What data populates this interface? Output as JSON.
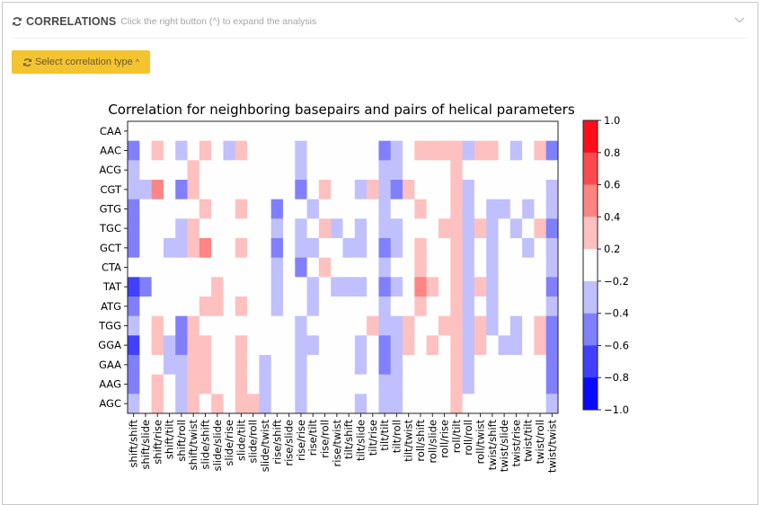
{
  "panel": {
    "title": "CORRELATIONS",
    "subtitle": "Click the right button (^) to expand the analysis",
    "title_icon": "refresh-icon",
    "collapse_icon": "chevron-down-icon"
  },
  "select_button": {
    "label": "Select correlation type",
    "icon": "refresh-icon",
    "caret": "^",
    "color": "#f4c430"
  },
  "chart_data": {
    "type": "heatmap",
    "title": "Correlation for neighboring basepairs and pairs of helical parameters",
    "xlabel": "",
    "ylabel": "",
    "grid": false,
    "legend": "colorbar-right",
    "rows": [
      "CAA",
      "AAC",
      "ACG",
      "CGT",
      "GTG",
      "TGC",
      "GCT",
      "CTA",
      "TAT",
      "ATG",
      "TGG",
      "GGA",
      "GAA",
      "AAG",
      "AGC"
    ],
    "columns": [
      "shift/shift",
      "shift/slide",
      "shift/rise",
      "shift/tilt",
      "shift/roll",
      "shift/twist",
      "slide/shift",
      "slide/slide",
      "slide/rise",
      "slide/tilt",
      "slide/roll",
      "slide/twist",
      "rise/shift",
      "rise/slide",
      "rise/rise",
      "rise/tilt",
      "rise/roll",
      "rise/twist",
      "tilt/shift",
      "tilt/slide",
      "tilt/rise",
      "tilt/tilt",
      "tilt/roll",
      "tilt/twist",
      "roll/shift",
      "roll/slide",
      "roll/rise",
      "roll/tilt",
      "roll/roll",
      "roll/twist",
      "twist/shift",
      "twist/slide",
      "twist/rise",
      "twist/tilt",
      "twist/roll",
      "twist/twist"
    ],
    "values": [
      [
        0,
        0,
        0,
        0,
        0,
        0,
        0,
        0,
        0,
        0,
        0,
        0,
        0,
        0,
        0,
        0,
        0,
        0,
        0,
        0,
        0,
        0,
        0,
        0,
        0,
        0,
        0,
        0,
        0,
        0,
        0,
        0,
        0,
        0,
        0,
        0
      ],
      [
        -0.5,
        0,
        0.3,
        0,
        -0.3,
        0,
        0.3,
        0,
        -0.3,
        0.3,
        0,
        0,
        0,
        0,
        -0.3,
        0,
        0,
        0,
        0,
        0,
        0,
        -0.5,
        -0.3,
        0,
        0.3,
        0.3,
        0.3,
        0.3,
        -0.3,
        0.3,
        0.3,
        0,
        -0.3,
        0,
        0.3,
        -0.5
      ],
      [
        -0.3,
        0,
        0,
        0,
        0,
        0.3,
        0,
        0,
        0,
        0,
        0,
        0,
        0,
        0,
        -0.3,
        0,
        0,
        0,
        0,
        0,
        0,
        -0.3,
        -0.3,
        0,
        0,
        0,
        0,
        0.3,
        0,
        0,
        0,
        0,
        0,
        0,
        0,
        0
      ],
      [
        -0.3,
        -0.3,
        0.5,
        0,
        -0.5,
        0.3,
        0,
        0,
        0,
        0,
        0,
        0,
        0,
        0,
        -0.5,
        0,
        0.3,
        0,
        0,
        -0.3,
        0.3,
        -0.3,
        -0.5,
        0.3,
        0,
        0,
        0,
        0.3,
        -0.3,
        0,
        0,
        0,
        0,
        0,
        0,
        -0.3
      ],
      [
        -0.5,
        0,
        0,
        0,
        0,
        0,
        0.3,
        0,
        0,
        0.3,
        0,
        0,
        -0.5,
        0,
        0,
        -0.3,
        0,
        0,
        0,
        0,
        0,
        -0.3,
        0,
        0,
        0.3,
        0,
        0,
        0.3,
        -0.3,
        0,
        -0.3,
        -0.3,
        0,
        -0.3,
        0,
        -0.3
      ],
      [
        -0.5,
        0,
        0,
        0,
        -0.3,
        0.3,
        0,
        0,
        0,
        0,
        0,
        0,
        -0.3,
        0,
        -0.3,
        0,
        0.3,
        -0.3,
        0,
        -0.3,
        0,
        -0.3,
        -0.3,
        0,
        0,
        0,
        0.3,
        0.3,
        -0.3,
        0.3,
        -0.3,
        0,
        -0.3,
        0,
        0.3,
        -0.5
      ],
      [
        -0.5,
        0,
        0,
        -0.3,
        -0.3,
        0.3,
        0.5,
        0,
        0,
        0.3,
        0,
        0,
        -0.5,
        0,
        -0.3,
        -0.3,
        0,
        0,
        -0.3,
        -0.3,
        0,
        -0.5,
        -0.3,
        0,
        0.3,
        0,
        0,
        0.3,
        -0.3,
        0,
        -0.3,
        0,
        0,
        -0.3,
        0,
        -0.3
      ],
      [
        0,
        0,
        0,
        0,
        0,
        0,
        0,
        0,
        0,
        0,
        0,
        0,
        -0.3,
        0,
        -0.5,
        0,
        0.3,
        0,
        0,
        0,
        0,
        -0.3,
        0,
        0,
        0.3,
        0,
        0,
        0.3,
        -0.3,
        0,
        -0.3,
        0,
        0,
        0,
        0,
        -0.3
      ],
      [
        -0.7,
        -0.5,
        0,
        0,
        0,
        0,
        0,
        0.3,
        0,
        0,
        0,
        0,
        -0.3,
        0,
        0,
        -0.3,
        0,
        -0.3,
        -0.3,
        -0.3,
        0,
        -0.5,
        -0.3,
        0,
        0.5,
        0.3,
        0,
        0.3,
        -0.3,
        0.3,
        -0.3,
        0,
        0,
        0,
        0,
        -0.5
      ],
      [
        -0.5,
        0,
        0,
        0,
        0,
        0,
        0.3,
        0.3,
        0,
        0.3,
        0,
        0,
        -0.3,
        0,
        0,
        -0.3,
        0,
        0,
        0,
        0,
        0,
        -0.3,
        0,
        0,
        0.3,
        0,
        0,
        0.3,
        -0.3,
        0,
        -0.3,
        0,
        0,
        0,
        0,
        -0.3
      ],
      [
        -0.3,
        0,
        0.3,
        0,
        -0.5,
        0.3,
        0,
        0,
        0,
        0,
        0,
        0,
        0,
        0,
        -0.3,
        0,
        0,
        0,
        0,
        0,
        0.3,
        -0.3,
        -0.3,
        0.3,
        0,
        0,
        0.3,
        0.3,
        -0.3,
        0.3,
        -0.3,
        0,
        -0.3,
        0,
        0.3,
        -0.5
      ],
      [
        -0.7,
        0,
        0.3,
        -0.3,
        -0.5,
        0.3,
        0.3,
        0,
        0,
        0.3,
        0,
        0,
        0,
        0,
        -0.3,
        -0.3,
        0,
        0,
        0,
        -0.3,
        0,
        -0.5,
        -0.3,
        0.3,
        0,
        0.3,
        0,
        0.3,
        -0.3,
        0.3,
        0,
        -0.3,
        -0.3,
        0,
        0.3,
        -0.5
      ],
      [
        -0.5,
        0,
        0,
        -0.3,
        -0.3,
        0.3,
        0.3,
        0,
        0,
        0.3,
        0,
        -0.3,
        0,
        0,
        -0.3,
        0,
        0,
        0,
        0,
        -0.3,
        0,
        -0.5,
        -0.3,
        0,
        0,
        0,
        0,
        0.3,
        -0.3,
        0,
        0,
        0,
        0,
        0,
        0,
        -0.5
      ],
      [
        -0.5,
        0,
        0.3,
        0,
        -0.3,
        0.3,
        0.3,
        0,
        0,
        0.3,
        0,
        -0.3,
        0,
        0,
        -0.3,
        0,
        0,
        0,
        0,
        0,
        0,
        -0.3,
        -0.3,
        0,
        0,
        0,
        0,
        0.3,
        -0.3,
        0,
        0,
        0,
        0,
        0,
        0,
        -0.5
      ],
      [
        -0.3,
        0,
        0.3,
        0,
        -0.3,
        0.3,
        0,
        0.3,
        0,
        0.3,
        0.3,
        -0.3,
        0,
        0,
        -0.3,
        0,
        0,
        0,
        0,
        -0.3,
        0,
        -0.3,
        -0.3,
        0,
        0,
        0,
        0,
        0.3,
        0,
        0,
        0,
        0,
        0,
        0,
        0,
        -0.3
      ]
    ],
    "colorbar": {
      "range": [
        -1.0,
        1.0
      ],
      "ticks": [
        "1.0",
        "0.8",
        "0.6",
        "0.4",
        "0.2",
        "−0.2",
        "−0.4",
        "−0.6",
        "−0.8",
        "−1.0"
      ],
      "bins": [
        {
          "from": 0.8,
          "to": 1.0,
          "color": "#ff0d1a"
        },
        {
          "from": 0.6,
          "to": 0.8,
          "color": "#ff4a4f"
        },
        {
          "from": 0.4,
          "to": 0.6,
          "color": "#ff8484"
        },
        {
          "from": 0.2,
          "to": 0.4,
          "color": "#ffc0c0"
        },
        {
          "from": -0.2,
          "to": 0.2,
          "color": "#fefefe"
        },
        {
          "from": -0.4,
          "to": -0.2,
          "color": "#c0c0fe"
        },
        {
          "from": -0.6,
          "to": -0.4,
          "color": "#8080fe"
        },
        {
          "from": -0.8,
          "to": -0.6,
          "color": "#4040fe"
        },
        {
          "from": -1.0,
          "to": -0.8,
          "color": "#0a0aff"
        }
      ]
    }
  }
}
